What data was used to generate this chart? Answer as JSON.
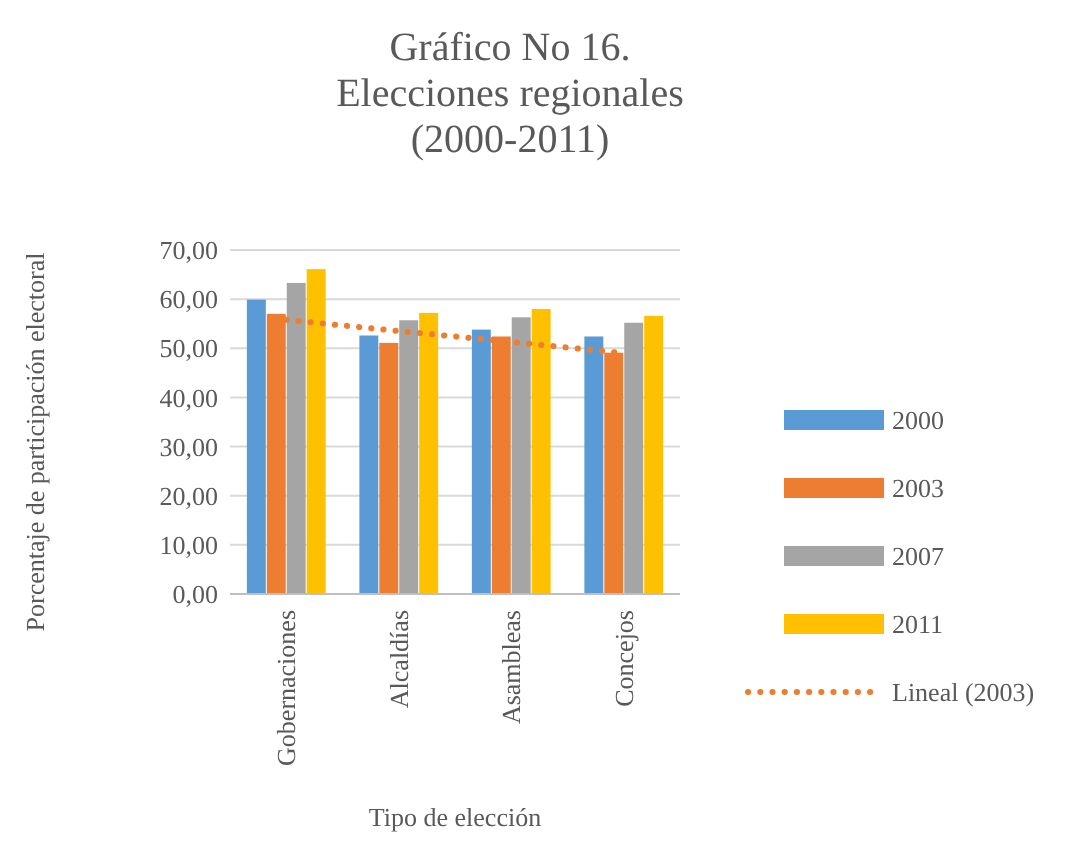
{
  "chart_data": {
    "type": "bar",
    "title": "Gráfico No 16.\nElecciones regionales\n(2000-2011)",
    "xlabel": "Tipo de elección",
    "ylabel": "Porcentaje de participación electoral",
    "categories": [
      "Gobernaciones",
      "Alcaldías",
      "Asambleas",
      "Concejos"
    ],
    "series": [
      {
        "name": "2000",
        "color": "#5b9bd5",
        "values": [
          59.9,
          52.6,
          53.8,
          52.4
        ]
      },
      {
        "name": "2003",
        "color": "#ed7d31",
        "values": [
          57.0,
          51.1,
          52.4,
          49.1
        ]
      },
      {
        "name": "2007",
        "color": "#a5a5a5",
        "values": [
          63.3,
          55.7,
          56.3,
          55.2
        ]
      },
      {
        "name": "2011",
        "color": "#ffc000",
        "values": [
          66.1,
          57.2,
          58.0,
          56.6
        ]
      },
      {
        "name": "Lineal (2003)",
        "type": "line",
        "color": "#ed7d31",
        "line_style": "dotted",
        "values": [
          55.8,
          53.5,
          51.3,
          49.0
        ]
      }
    ],
    "ylim": [
      0,
      70
    ],
    "yticks": [
      {
        "value": 0,
        "label": "0,00"
      },
      {
        "value": 10,
        "label": "10,00"
      },
      {
        "value": 20,
        "label": "20,00"
      },
      {
        "value": 30,
        "label": "30,00"
      },
      {
        "value": 40,
        "label": "40,00"
      },
      {
        "value": 50,
        "label": "50,00"
      },
      {
        "value": 60,
        "label": "60,00"
      },
      {
        "value": 70,
        "label": "70,00"
      }
    ],
    "grid": "y",
    "legend": "right"
  }
}
